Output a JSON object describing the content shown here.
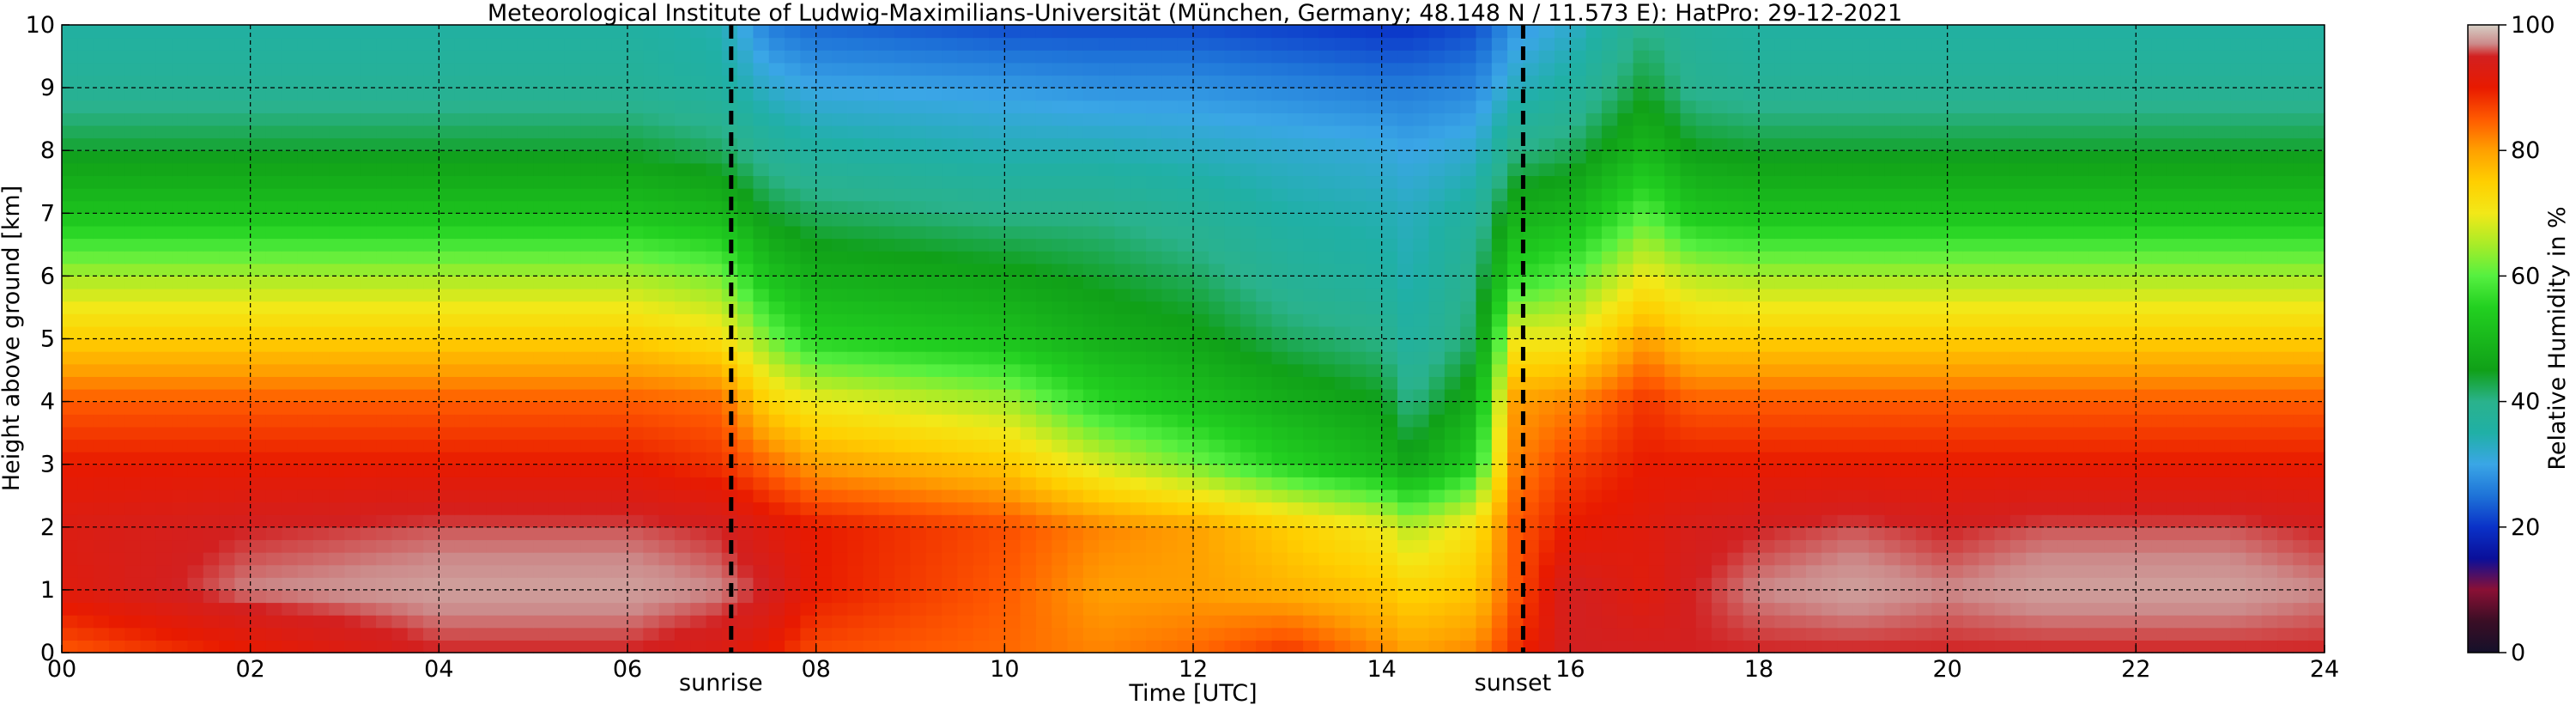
{
  "chart_data": {
    "type": "heatmap",
    "title": "Meteorological Institute of Ludwig-Maximilians-Universität (München, Germany; 48.148 N / 11.573 E):    HatPro: 29-12-2021",
    "xlabel": "Time [UTC]",
    "ylabel": "Height above ground [km]",
    "colorbar_label": "Relative Humidity in %",
    "xlim": [
      0,
      24
    ],
    "ylim": [
      0,
      10
    ],
    "x_ticks": [
      0,
      2,
      4,
      6,
      8,
      10,
      12,
      14,
      16,
      18,
      20,
      22,
      24
    ],
    "x_tick_labels": [
      "00",
      "02",
      "04",
      "06",
      "08",
      "10",
      "12",
      "14",
      "16",
      "18",
      "20",
      "22",
      "24"
    ],
    "y_ticks": [
      0,
      1,
      2,
      3,
      4,
      5,
      6,
      7,
      8,
      9,
      10
    ],
    "y_tick_labels": [
      "0",
      "1",
      "2",
      "3",
      "4",
      "5",
      "6",
      "7",
      "8",
      "9",
      "10"
    ],
    "colorbar_range": [
      0,
      100
    ],
    "colorbar_ticks": [
      0,
      20,
      40,
      60,
      80,
      100
    ],
    "colorbar_tick_labels": [
      "0",
      "20",
      "40",
      "60",
      "80",
      "100"
    ],
    "grid": true,
    "annotations": [
      {
        "label": "sunrise",
        "x": 7.1
      },
      {
        "label": "sunset",
        "x": 15.5
      }
    ],
    "time_hours": [
      0,
      2,
      4,
      6,
      7,
      7.5,
      8,
      10,
      11,
      12,
      13,
      14,
      14.3,
      15,
      15.4,
      16,
      16.8,
      17.3,
      18,
      19,
      20,
      21,
      22,
      23,
      24
    ],
    "height_km": [
      0,
      1,
      2,
      3,
      4,
      5,
      6,
      7,
      8,
      9,
      10
    ],
    "relative_humidity_percent": [
      [
        85,
        90,
        95,
        95,
        93,
        90,
        86,
        84,
        82,
        84,
        88,
        82,
        80,
        82,
        88,
        95,
        95,
        95,
        95,
        95,
        95,
        95,
        95,
        95,
        95
      ],
      [
        92,
        97,
        98,
        98,
        97,
        95,
        90,
        85,
        80,
        80,
        78,
        76,
        74,
        76,
        85,
        95,
        92,
        95,
        97,
        98,
        97,
        98,
        98,
        98,
        97
      ],
      [
        93,
        95,
        96,
        96,
        95,
        92,
        90,
        86,
        82,
        80,
        75,
        70,
        66,
        72,
        85,
        90,
        92,
        94,
        95,
        96,
        95,
        96,
        96,
        96,
        95
      ],
      [
        90,
        90,
        90,
        90,
        88,
        84,
        80,
        76,
        68,
        62,
        55,
        50,
        46,
        55,
        82,
        87,
        90,
        90,
        90,
        90,
        90,
        90,
        90,
        90,
        90
      ],
      [
        85,
        85,
        85,
        85,
        84,
        74,
        70,
        65,
        56,
        52,
        48,
        45,
        40,
        48,
        80,
        82,
        88,
        85,
        85,
        85,
        85,
        85,
        85,
        85,
        85
      ],
      [
        75,
        75,
        75,
        75,
        72,
        62,
        55,
        52,
        48,
        46,
        42,
        40,
        36,
        42,
        70,
        70,
        80,
        75,
        75,
        75,
        75,
        75,
        75,
        75,
        75
      ],
      [
        65,
        65,
        65,
        65,
        62,
        52,
        48,
        46,
        44,
        42,
        38,
        36,
        34,
        40,
        56,
        60,
        70,
        66,
        65,
        65,
        65,
        65,
        65,
        65,
        65
      ],
      [
        52,
        52,
        52,
        52,
        50,
        44,
        42,
        40,
        40,
        38,
        35,
        34,
        33,
        37,
        48,
        50,
        60,
        53,
        52,
        52,
        52,
        52,
        52,
        52,
        52
      ],
      [
        44,
        44,
        44,
        44,
        42,
        38,
        36,
        34,
        34,
        33,
        32,
        31,
        30,
        32,
        40,
        42,
        50,
        45,
        44,
        44,
        44,
        44,
        44,
        44,
        44
      ],
      [
        38,
        38,
        38,
        38,
        36,
        32,
        30,
        29,
        28,
        28,
        27,
        26,
        26,
        27,
        33,
        36,
        44,
        39,
        38,
        38,
        38,
        38,
        38,
        38,
        38
      ],
      [
        36,
        36,
        36,
        36,
        34,
        26,
        24,
        22,
        22,
        22,
        21,
        20,
        20,
        22,
        28,
        32,
        40,
        37,
        36,
        36,
        36,
        36,
        36,
        36,
        36
      ]
    ],
    "colormap": [
      {
        "value": 0,
        "color": "#15102a"
      },
      {
        "value": 5,
        "color": "#3a0e25"
      },
      {
        "value": 10,
        "color": "#8a1035"
      },
      {
        "value": 15,
        "color": "#0a0f9a"
      },
      {
        "value": 20,
        "color": "#0a32c8"
      },
      {
        "value": 25,
        "color": "#1e73d8"
      },
      {
        "value": 30,
        "color": "#3aa6e6"
      },
      {
        "value": 35,
        "color": "#20b0a6"
      },
      {
        "value": 40,
        "color": "#2ab28c"
      },
      {
        "value": 45,
        "color": "#10a018"
      },
      {
        "value": 55,
        "color": "#22d020"
      },
      {
        "value": 60,
        "color": "#55f040"
      },
      {
        "value": 65,
        "color": "#a8ec28"
      },
      {
        "value": 70,
        "color": "#f2e818"
      },
      {
        "value": 75,
        "color": "#ffcf00"
      },
      {
        "value": 80,
        "color": "#ffa000"
      },
      {
        "value": 85,
        "color": "#ff5a00"
      },
      {
        "value": 90,
        "color": "#e81a00"
      },
      {
        "value": 95,
        "color": "#d22020"
      },
      {
        "value": 97,
        "color": "#cc8a8a"
      },
      {
        "value": 100,
        "color": "#d6d0c6"
      }
    ]
  }
}
